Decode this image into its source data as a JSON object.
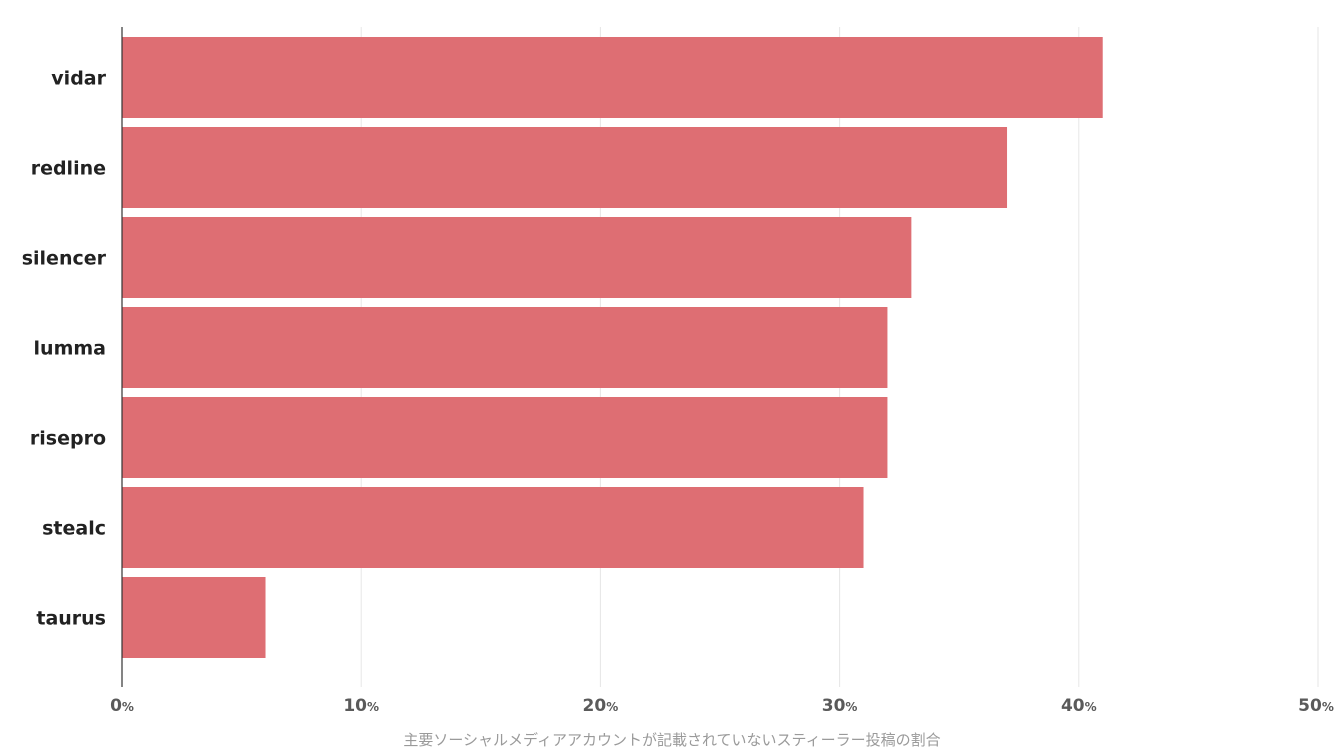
{
  "chart_data": {
    "type": "bar",
    "orientation": "horizontal",
    "categories": [
      "vidar",
      "redline",
      "silencer",
      "lumma",
      "risepro",
      "stealc",
      "taurus"
    ],
    "values": [
      41,
      37,
      33,
      32,
      32,
      31,
      6
    ],
    "xlabel": "主要ソーシャルメディアアカウントが記載されていないスティーラー投稿の割合",
    "ylabel": "",
    "xlim": [
      0,
      50
    ],
    "x_ticks": [
      0,
      10,
      20,
      30,
      40,
      50
    ],
    "tick_unit": "%",
    "grid": true,
    "bar_color": "#de6e73"
  }
}
